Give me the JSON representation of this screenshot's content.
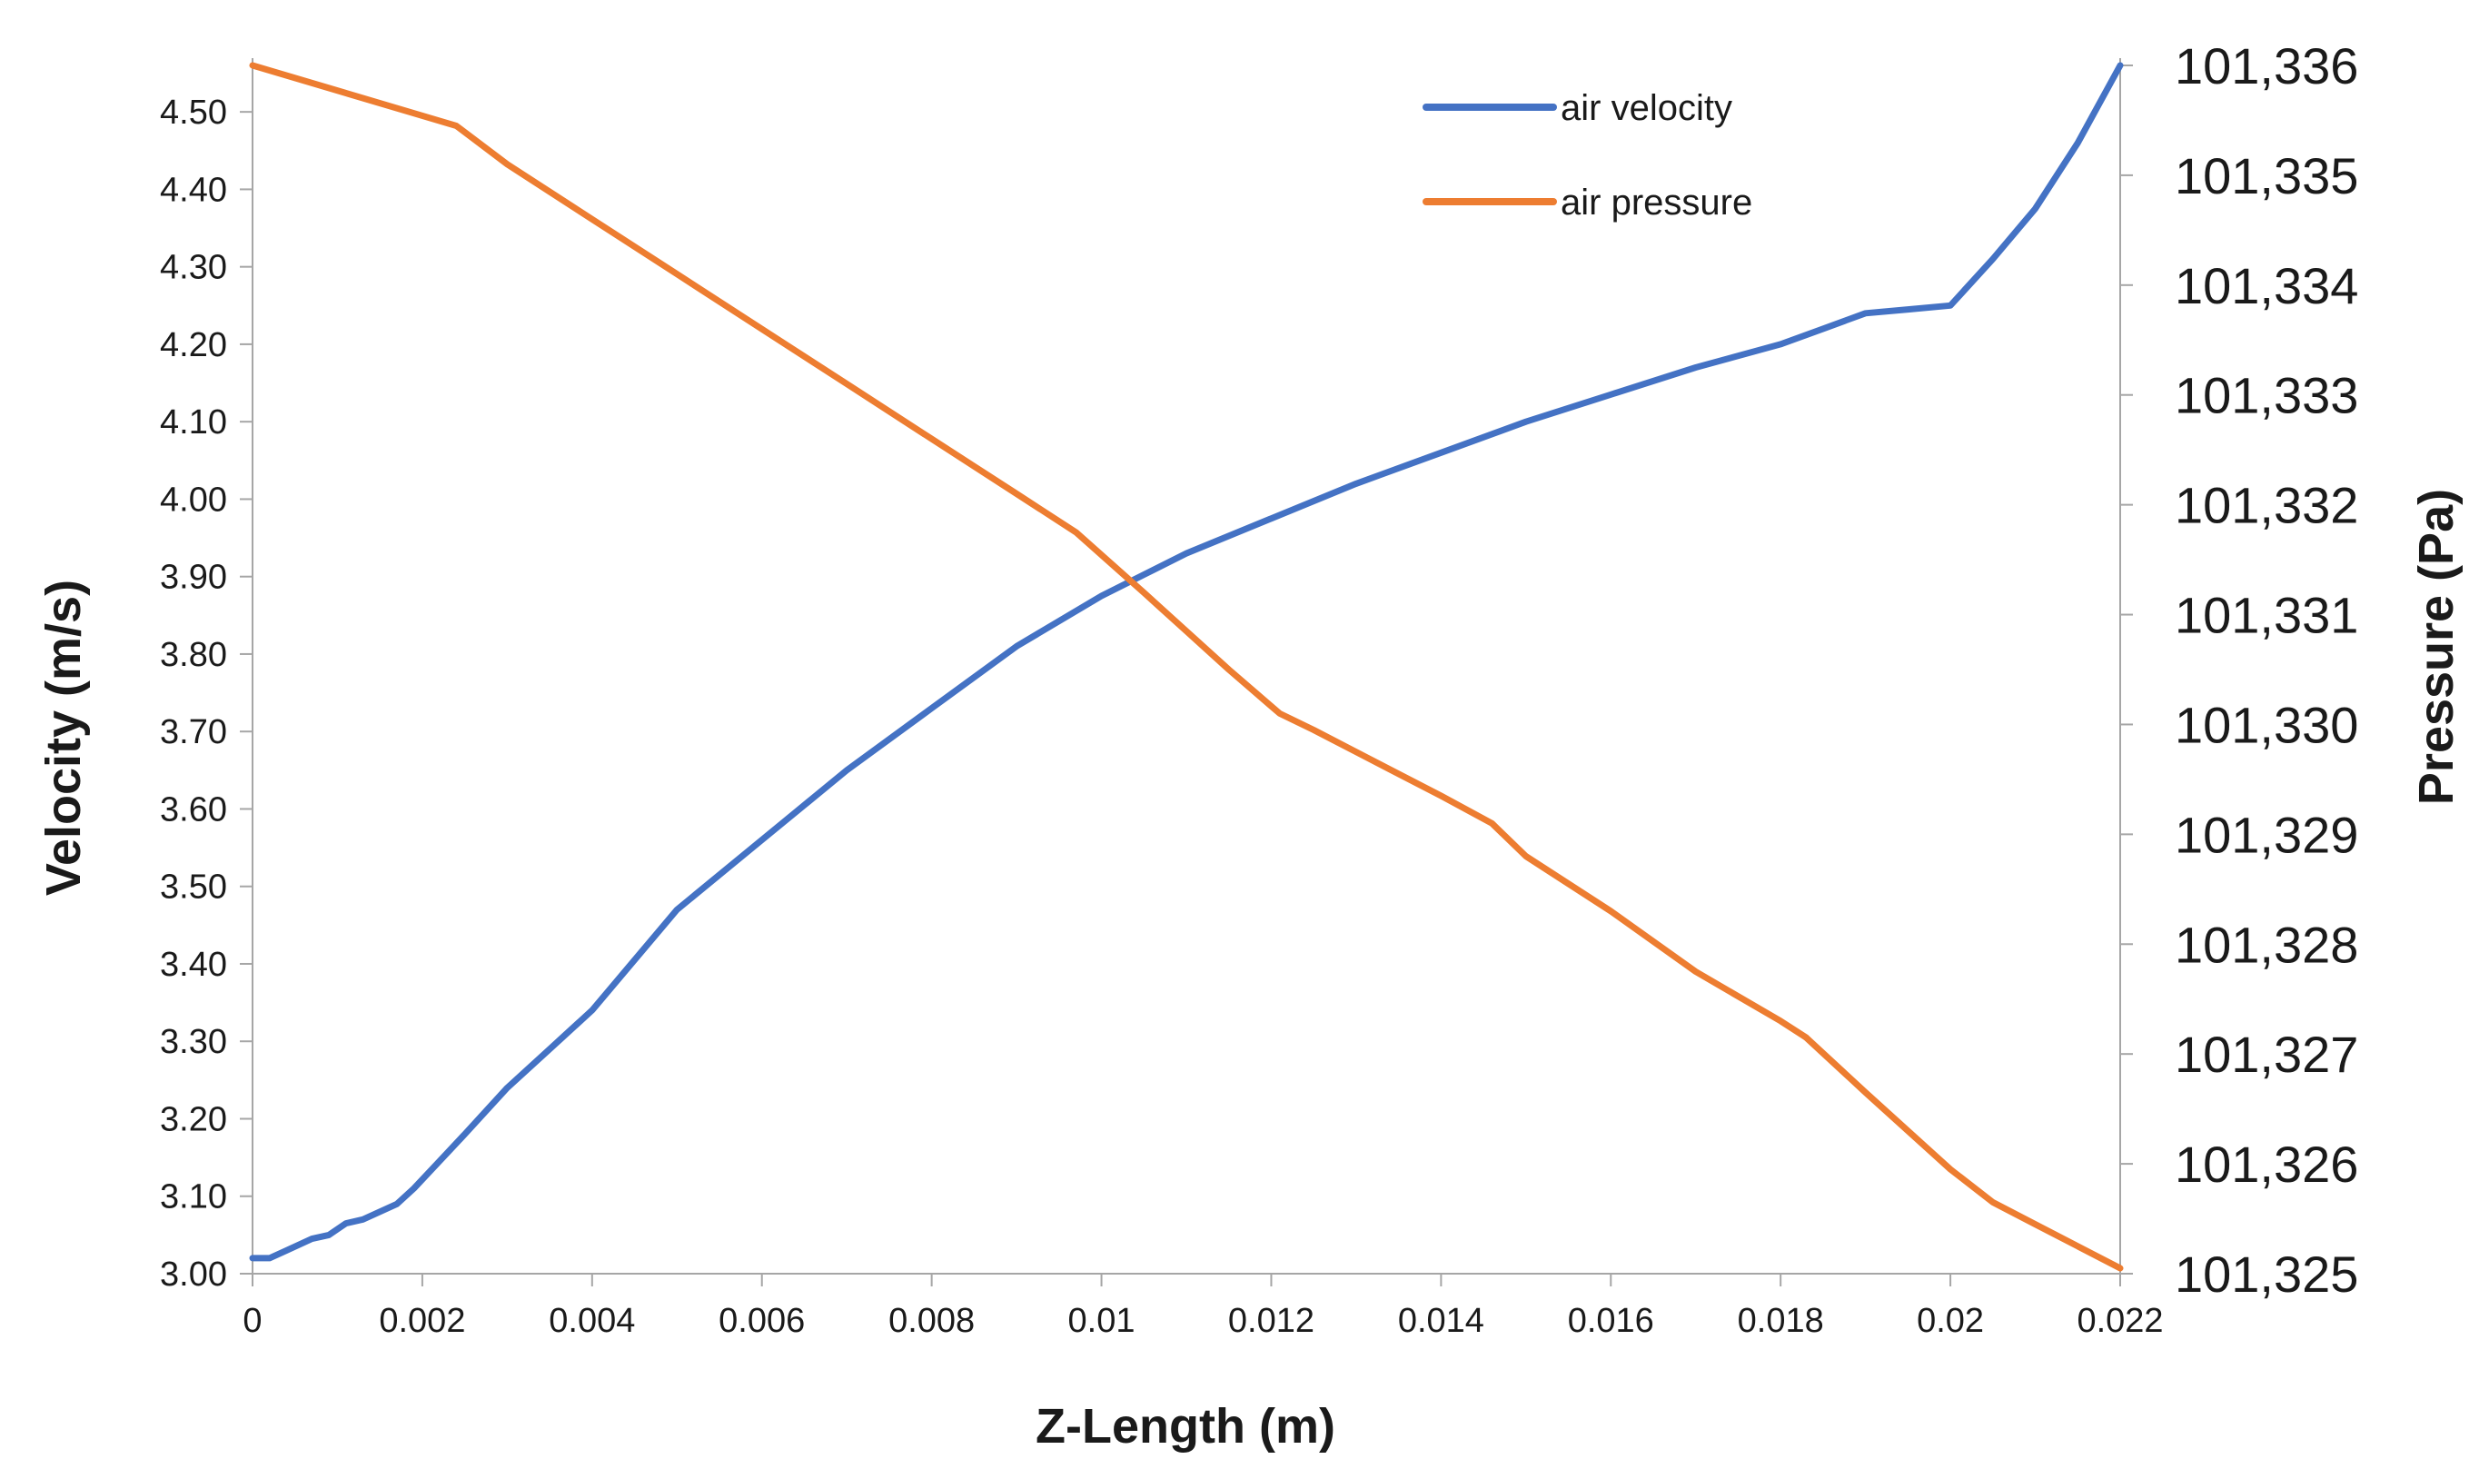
{
  "chart_data": {
    "type": "line",
    "title": "",
    "xlabel": "Z-Length (m)",
    "ylabel": "Velocity (m/s)",
    "y2label": "Pressure (Pa)",
    "xlim": [
      0,
      0.022
    ],
    "ylim": [
      3.0,
      4.56
    ],
    "y2lim": [
      101325,
      101336
    ],
    "x_ticks": [
      0,
      0.002,
      0.004,
      0.006,
      0.008,
      0.01,
      0.012,
      0.014,
      0.016,
      0.018,
      0.02,
      0.022
    ],
    "x_tick_labels": [
      "0",
      "0.002",
      "0.004",
      "0.006",
      "0.008",
      "0.01",
      "0.012",
      "0.014",
      "0.016",
      "0.018",
      "0.02",
      "0.022"
    ],
    "y_ticks": [
      3.0,
      3.1,
      3.2,
      3.3,
      3.4,
      3.5,
      3.6,
      3.7,
      3.8,
      3.9,
      4.0,
      4.1,
      4.2,
      4.3,
      4.4,
      4.5
    ],
    "y_tick_labels": [
      "3.00",
      "3.10",
      "3.20",
      "3.30",
      "3.40",
      "3.50",
      "3.60",
      "3.70",
      "3.80",
      "3.90",
      "4.00",
      "4.10",
      "4.20",
      "4.30",
      "4.40",
      "4.50"
    ],
    "y2_ticks": [
      101325,
      101326,
      101327,
      101328,
      101329,
      101330,
      101331,
      101332,
      101333,
      101334,
      101335,
      101336
    ],
    "y2_tick_labels": [
      "101,325",
      "101,326",
      "101,327",
      "101,328",
      "101,329",
      "101,330",
      "101,331",
      "101,332",
      "101,333",
      "101,334",
      "101,335",
      "101,336"
    ],
    "grid": false,
    "legend_position": "top-right",
    "series": [
      {
        "name": "air velocity",
        "axis": "left",
        "color": "#4472C4",
        "x": [
          0,
          0.0002,
          0.0004,
          0.0007,
          0.0009,
          0.0011,
          0.0013,
          0.0015,
          0.0017,
          0.0019,
          0.0022,
          0.0025,
          0.003,
          0.0035,
          0.004,
          0.0045,
          0.005,
          0.006,
          0.007,
          0.008,
          0.009,
          0.01,
          0.011,
          0.012,
          0.013,
          0.014,
          0.015,
          0.016,
          0.017,
          0.018,
          0.0185,
          0.019,
          0.0195,
          0.02,
          0.0205,
          0.021,
          0.0215,
          0.022
        ],
        "y": [
          3.02,
          3.02,
          3.03,
          3.045,
          3.05,
          3.065,
          3.07,
          3.08,
          3.09,
          3.11,
          3.145,
          3.18,
          3.24,
          3.29,
          3.34,
          3.405,
          3.47,
          3.56,
          3.65,
          3.73,
          3.81,
          3.875,
          3.93,
          3.975,
          4.02,
          4.06,
          4.1,
          4.135,
          4.17,
          4.2,
          4.22,
          4.24,
          4.245,
          4.25,
          4.31,
          4.375,
          4.46,
          4.56
        ]
      },
      {
        "name": "air pressure",
        "axis": "right",
        "color": "#ED7D31",
        "x": [
          0,
          0.0024,
          0.003,
          0.004,
          0.005,
          0.006,
          0.007,
          0.008,
          0.009,
          0.0097,
          0.0105,
          0.011,
          0.0115,
          0.0121,
          0.0125,
          0.013,
          0.014,
          0.0146,
          0.015,
          0.016,
          0.017,
          0.018,
          0.0183,
          0.019,
          0.02,
          0.0205,
          0.021,
          0.0215,
          0.022
        ],
        "y": [
          101336,
          101335.45,
          101335.1,
          101334.6,
          101334.1,
          101333.6,
          101333.1,
          101332.6,
          101332.1,
          101331.75,
          101331.2,
          101330.85,
          101330.5,
          101330.1,
          101329.95,
          101329.75,
          101329.35,
          101329.1,
          101328.8,
          101328.3,
          101327.75,
          101327.3,
          101327.15,
          101326.65,
          101325.95,
          101325.65,
          101325.45,
          101325.25,
          101325.05
        ]
      }
    ]
  }
}
